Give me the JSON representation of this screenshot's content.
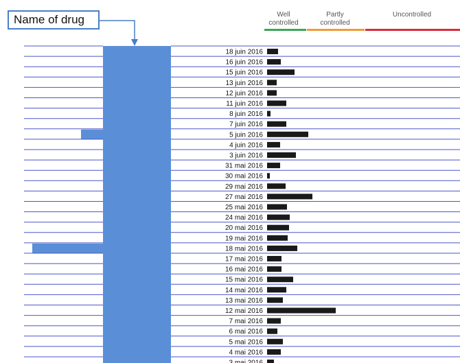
{
  "callout": {
    "label": "Name of drug"
  },
  "legend": [
    {
      "label_line1": "Well",
      "label_line2": "controlled",
      "color": "#3aa655"
    },
    {
      "label_line1": "Partly",
      "label_line2": "controlled",
      "color": "#f29a38"
    },
    {
      "label_line1": "Uncontrolled",
      "label_line2": "",
      "color": "#d92b3a"
    }
  ],
  "colors": {
    "row_line": "#4a55c8",
    "drug_band": "#5a8fd8",
    "bar": "#1a1a1a",
    "arrow": "#4a7ec6"
  },
  "chart_data": {
    "type": "bar",
    "orientation": "horizontal",
    "categories": [
      "18 juin 2016",
      "16 juin 2016",
      "15 juin 2016",
      "13 juin 2016",
      "12 juin 2016",
      "11 juin 2016",
      "8 juin 2016",
      "7 juin 2016",
      "5 juin 2016",
      "4 juin 2016",
      "3 juin 2016",
      "31 mai 2016",
      "30 mai 2016",
      "29 mai 2016",
      "27 mai 2016",
      "25 mai 2016",
      "24 mai 2016",
      "20 mai 2016",
      "19 mai 2016",
      "18 mai 2016",
      "17 mai 2016",
      "16 mai 2016",
      "15 mai 2016",
      "14 mai 2016",
      "13 mai 2016",
      "12 mai 2016",
      "7 mai 2016",
      "6 mai 2016",
      "5 mai 2016",
      "4 mai 2016",
      "3 mai 2016"
    ],
    "values": [
      16,
      20,
      40,
      14,
      14,
      28,
      5,
      28,
      60,
      19,
      42,
      19,
      4,
      27,
      66,
      29,
      33,
      32,
      30,
      44,
      21,
      21,
      38,
      28,
      23,
      100,
      20,
      15,
      23,
      20,
      10
    ],
    "drug_band_extent": [
      0,
      0,
      0,
      0,
      0,
      0,
      0,
      0,
      1,
      0,
      0,
      0,
      0,
      0,
      0,
      0,
      0,
      0,
      0,
      1,
      0,
      0,
      0,
      0,
      0,
      0,
      0,
      0,
      0,
      0,
      0
    ],
    "xlim": [
      0,
      100
    ],
    "title": "",
    "xlabel": "",
    "ylabel": ""
  }
}
